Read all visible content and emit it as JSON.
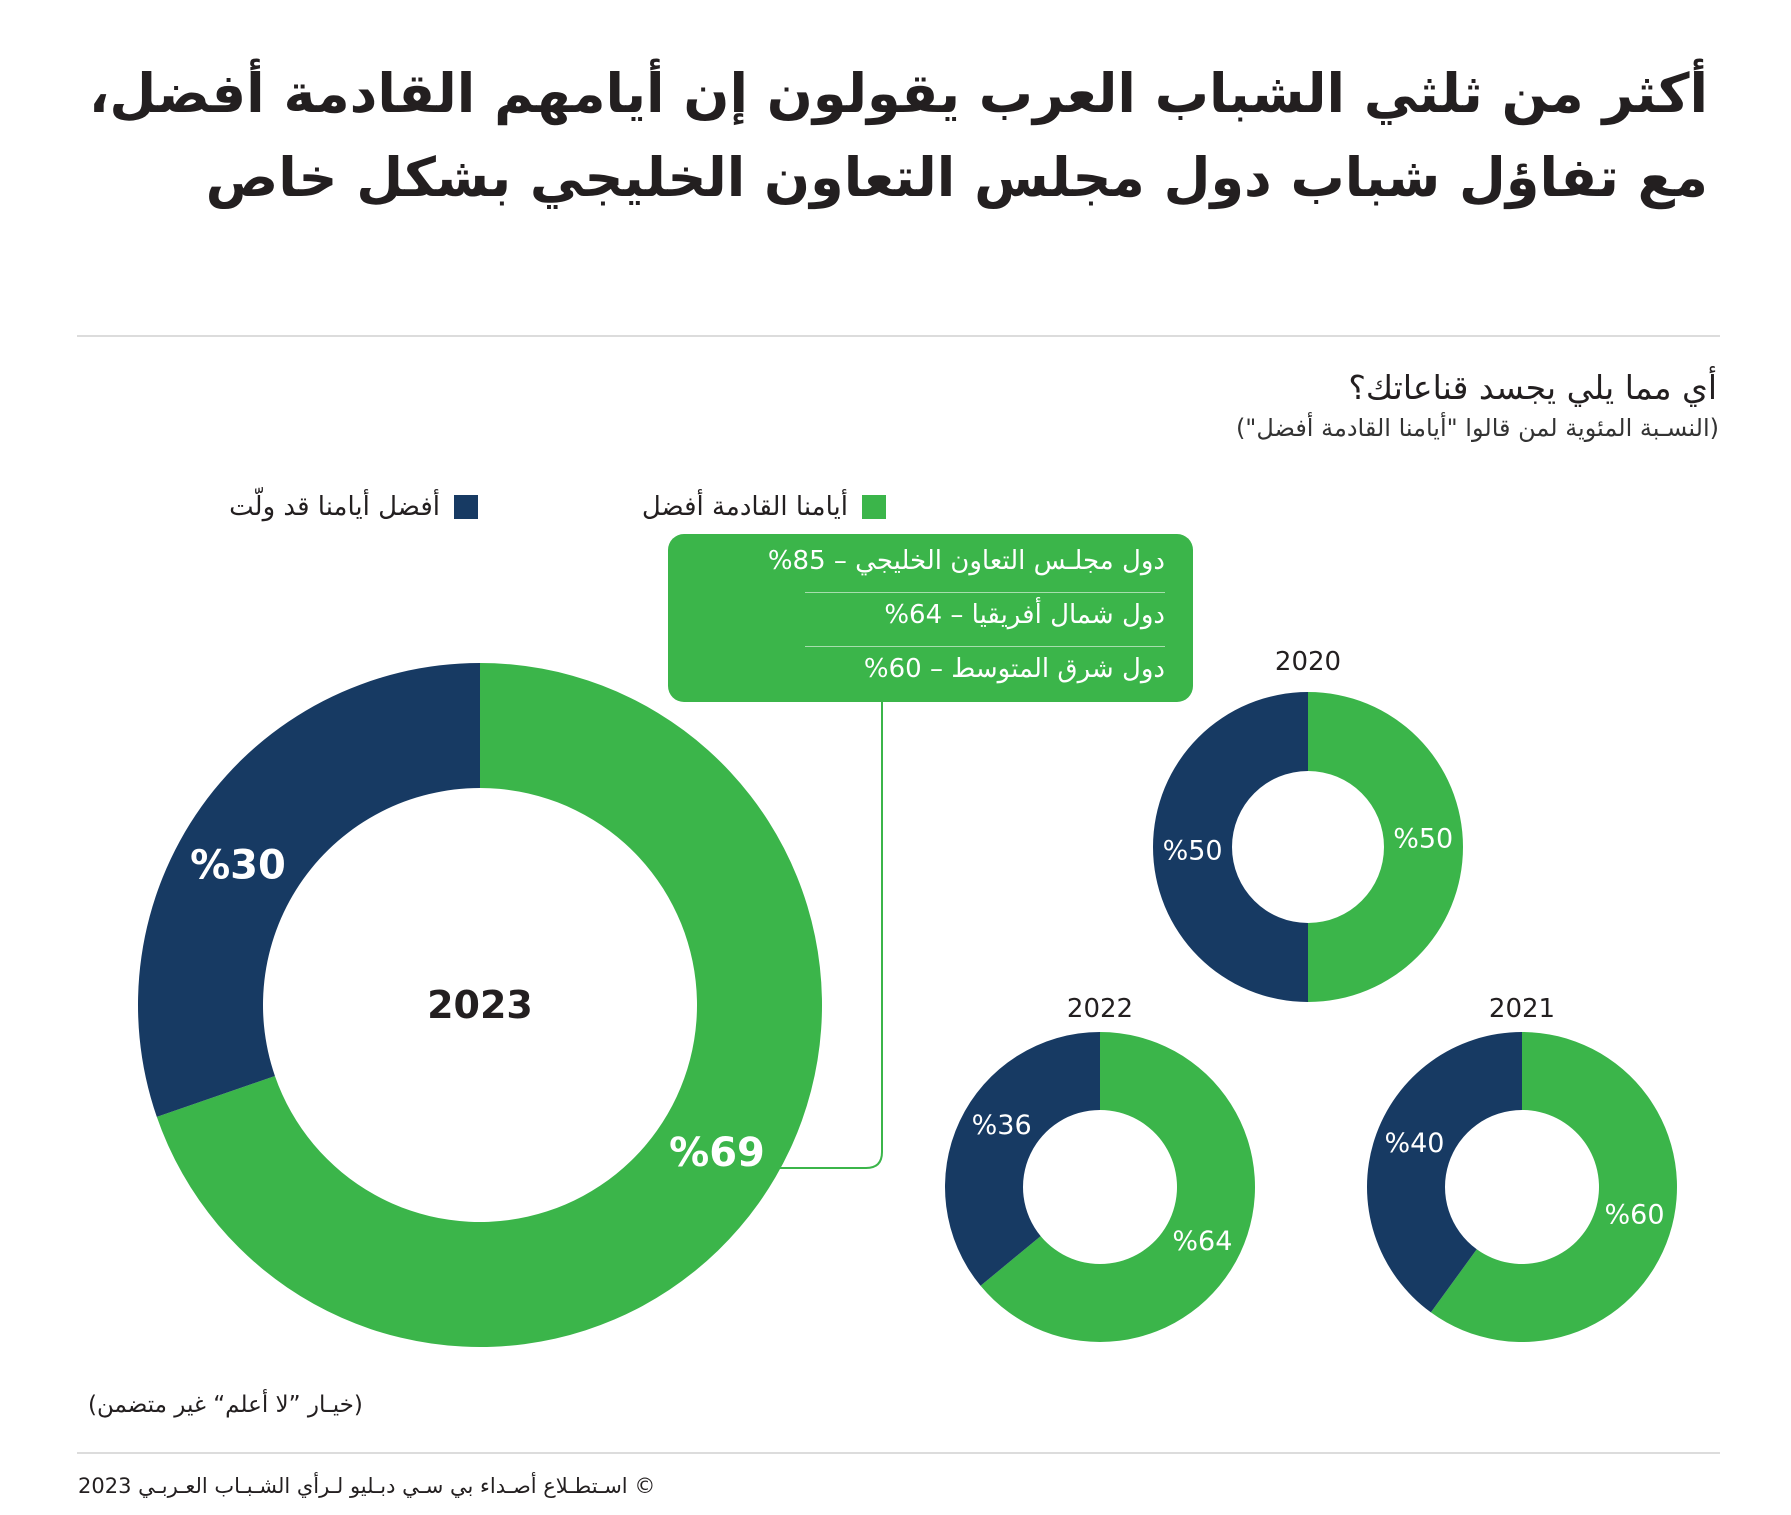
{
  "header": {
    "title_line1": "أكثر من ثلثي الشباب العرب يقولون إن أيامهم القادمة أفضل،",
    "title_line2": "مع تفاؤل شباب دول مجلس التعاون الخليجي بشكل خاص"
  },
  "question": "أي مما يلي يجسد قناعاتك؟",
  "subtitle": "(النسـبة المئوية لمن قالوا \"أيامنا القادمة أفضل\")",
  "legend": [
    {
      "label": "أيامنا القادمة أفضل",
      "color": "#3bb54a"
    },
    {
      "label": "أفضل أيامنا قد ولّت",
      "color": "#173a63"
    }
  ],
  "callout": {
    "rows": [
      "دول مجلـس التعاون الخليجي – 85%",
      "دول شمال أفريقيا – 64%",
      "دول شرق المتوسط – 60%"
    ]
  },
  "chart_data": {
    "type": "pie",
    "variant": "donut",
    "series_names": [
      "أيامنا القادمة أفضل",
      "أفضل أيامنا قد ولّت"
    ],
    "colors": [
      "#3bb54a",
      "#173a63"
    ],
    "charts": [
      {
        "year": "2023",
        "values": [
          69,
          30
        ],
        "labels": [
          "%69",
          "%30"
        ]
      },
      {
        "year": "2020",
        "values": [
          50,
          50
        ],
        "labels": [
          "%50",
          "%50"
        ]
      },
      {
        "year": "2022",
        "values": [
          64,
          36
        ],
        "labels": [
          "%64",
          "%36"
        ]
      },
      {
        "year": "2021",
        "values": [
          60,
          40
        ],
        "labels": [
          "%60",
          "%40"
        ]
      }
    ]
  },
  "footer": {
    "note": "(خيـار ”لا أعلم“ غير متضمن)",
    "source": "©  اسـتطـلاع أصـداء بي سـي دبـليو لـرأي الشـبـاب العـربـي 2023"
  }
}
